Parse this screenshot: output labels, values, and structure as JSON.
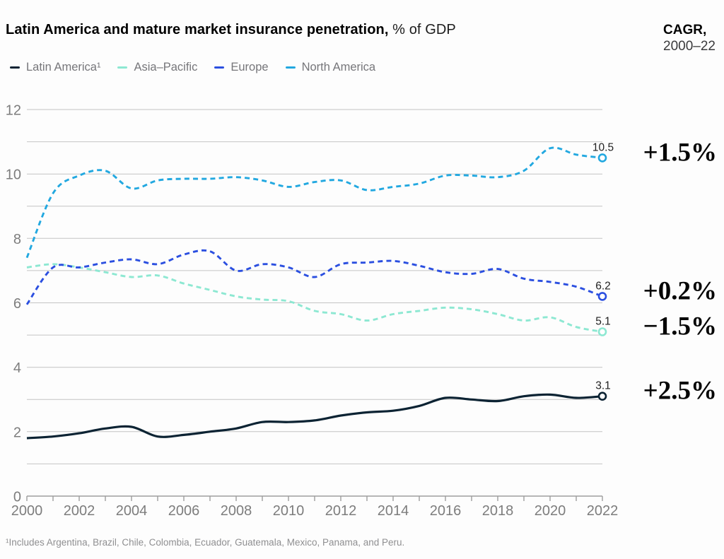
{
  "header": {
    "title_bold": "Latin America and mature market insurance penetration,",
    "title_suffix": "% of GDP",
    "cagr_label": "CAGR,",
    "cagr_period": "2000–22"
  },
  "footnote": "¹Includes Argentina, Brazil, Chile, Colombia, Ecuador, Guatemala, Mexico, Panama, and Peru.",
  "chart_data": {
    "type": "line",
    "title": "Latin America and mature market insurance penetration, % of GDP",
    "x": [
      2000,
      2001,
      2002,
      2003,
      2004,
      2005,
      2006,
      2007,
      2008,
      2009,
      2010,
      2011,
      2012,
      2013,
      2014,
      2015,
      2016,
      2017,
      2018,
      2019,
      2020,
      2021,
      2022
    ],
    "x_axis": {
      "tick_labels": [
        2000,
        2002,
        2004,
        2006,
        2008,
        2010,
        2012,
        2014,
        2016,
        2018,
        2020,
        2022
      ]
    },
    "y_axis": {
      "range": [
        0,
        12
      ],
      "tick_labels": [
        0,
        2,
        4,
        6,
        8,
        10,
        12
      ],
      "gridline_step": 1,
      "grid": "on"
    },
    "legend_position": "top-left",
    "series": [
      {
        "name": "Latin America¹",
        "color": "#0c2333",
        "line_style": "solid",
        "values": [
          1.8,
          1.85,
          1.95,
          2.1,
          2.15,
          1.85,
          1.9,
          2.0,
          2.1,
          2.3,
          2.3,
          2.35,
          2.5,
          2.6,
          2.65,
          2.8,
          3.05,
          3.0,
          2.95,
          3.1,
          3.15,
          3.05,
          3.1
        ],
        "end_label": "3.1",
        "cagr": "+2.5%"
      },
      {
        "name": "Asia–Pacific",
        "color": "#8de8d2",
        "line_style": "dashed",
        "values": [
          7.1,
          7.2,
          7.1,
          6.95,
          6.8,
          6.85,
          6.6,
          6.4,
          6.2,
          6.1,
          6.05,
          5.75,
          5.65,
          5.45,
          5.65,
          5.75,
          5.85,
          5.8,
          5.65,
          5.45,
          5.55,
          5.25,
          5.1
        ],
        "end_label": "5.1",
        "cagr": "−1.5%"
      },
      {
        "name": "Europe",
        "color": "#2b4fe0",
        "line_style": "dashed",
        "values": [
          5.95,
          7.1,
          7.1,
          7.25,
          7.35,
          7.2,
          7.5,
          7.6,
          7.0,
          7.2,
          7.1,
          6.8,
          7.2,
          7.25,
          7.3,
          7.15,
          6.95,
          6.9,
          7.05,
          6.75,
          6.65,
          6.5,
          6.2
        ],
        "end_label": "6.2",
        "cagr": "+0.2%"
      },
      {
        "name": "North America",
        "color": "#22a8e0",
        "line_style": "dashed",
        "values": [
          7.4,
          9.4,
          9.95,
          10.1,
          9.55,
          9.8,
          9.85,
          9.85,
          9.9,
          9.8,
          9.6,
          9.75,
          9.8,
          9.5,
          9.6,
          9.7,
          9.95,
          9.95,
          9.9,
          10.1,
          10.8,
          10.6,
          10.5
        ],
        "end_label": "10.5",
        "cagr": "+1.5%"
      }
    ]
  }
}
